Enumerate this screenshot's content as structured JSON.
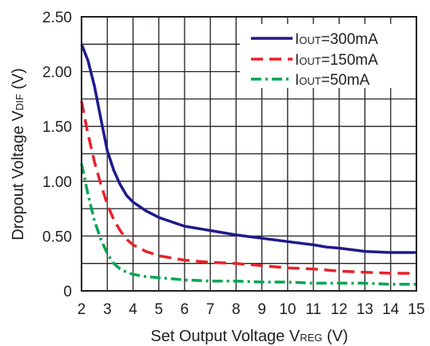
{
  "chart_data": {
    "type": "line",
    "title": "",
    "xlabel": {
      "main": "Set Output Voltage V",
      "sub": "REG",
      "unit": " (V)"
    },
    "ylabel": {
      "main": "Dropout Voltage V",
      "sub": "DIF",
      "unit": " (V)"
    },
    "xlim": [
      2,
      15
    ],
    "ylim": [
      0,
      2.5
    ],
    "x_ticks": [
      2,
      3,
      4,
      5,
      6,
      7,
      8,
      9,
      10,
      11,
      12,
      13,
      14,
      15
    ],
    "x_tick_labels": [
      "2",
      "3",
      "4",
      "5",
      "6",
      "7",
      "8",
      "9",
      "10",
      "11",
      "12",
      "13",
      "14",
      "15"
    ],
    "y_ticks": [
      0,
      0.5,
      1.0,
      1.5,
      2.0,
      2.5
    ],
    "y_tick_labels": [
      "0",
      "0.50",
      "1.00",
      "1.50",
      "2.00",
      "2.50"
    ],
    "grid": {
      "x_major": true,
      "x_minor": false,
      "y_major": true,
      "y_minor": true,
      "y_minor_step": 0.25
    },
    "legend_position": "top-right",
    "series": [
      {
        "name": {
          "prefix": "I",
          "sub": "OUT",
          "suffix": "=300mA"
        },
        "color": "#1f1a8c",
        "style": "solid",
        "x": [
          2.0,
          2.25,
          2.5,
          2.75,
          3.0,
          3.25,
          3.5,
          3.75,
          4.0,
          4.5,
          5.0,
          5.5,
          6.0,
          7.0,
          8.0,
          9.0,
          10.0,
          11.0,
          11.5,
          12.0,
          13.0,
          14.0,
          15.0
        ],
        "y": [
          2.25,
          2.1,
          1.87,
          1.57,
          1.28,
          1.1,
          0.97,
          0.87,
          0.81,
          0.73,
          0.67,
          0.63,
          0.59,
          0.55,
          0.51,
          0.48,
          0.45,
          0.42,
          0.4,
          0.39,
          0.36,
          0.35,
          0.35
        ]
      },
      {
        "name": {
          "prefix": "I",
          "sub": "OUT",
          "suffix": "=150mA"
        },
        "color": "#e8212a",
        "style": "dashed",
        "x": [
          2.0,
          2.25,
          2.5,
          2.75,
          3.0,
          3.25,
          3.5,
          3.75,
          4.0,
          4.5,
          5.0,
          5.5,
          6.0,
          7.0,
          8.0,
          9.0,
          10.0,
          11.0,
          11.5,
          12.0,
          13.0,
          14.0,
          15.0
        ],
        "y": [
          1.73,
          1.43,
          1.18,
          0.97,
          0.79,
          0.65,
          0.55,
          0.47,
          0.42,
          0.36,
          0.32,
          0.3,
          0.28,
          0.26,
          0.25,
          0.23,
          0.21,
          0.2,
          0.19,
          0.18,
          0.17,
          0.16,
          0.16
        ]
      },
      {
        "name": {
          "prefix": "I",
          "sub": "OUT",
          "suffix": "=50mA"
        },
        "color": "#00a651",
        "style": "dashdot",
        "x": [
          2.0,
          2.25,
          2.5,
          2.75,
          3.0,
          3.25,
          3.5,
          3.75,
          4.0,
          4.5,
          5.0,
          5.5,
          6.0,
          7.0,
          8.0,
          9.0,
          10.0,
          11.0,
          12.0,
          13.0,
          14.0,
          15.0
        ],
        "y": [
          1.16,
          0.88,
          0.64,
          0.47,
          0.34,
          0.25,
          0.2,
          0.17,
          0.15,
          0.13,
          0.12,
          0.11,
          0.1,
          0.09,
          0.09,
          0.08,
          0.08,
          0.07,
          0.07,
          0.07,
          0.06,
          0.06
        ]
      }
    ]
  }
}
